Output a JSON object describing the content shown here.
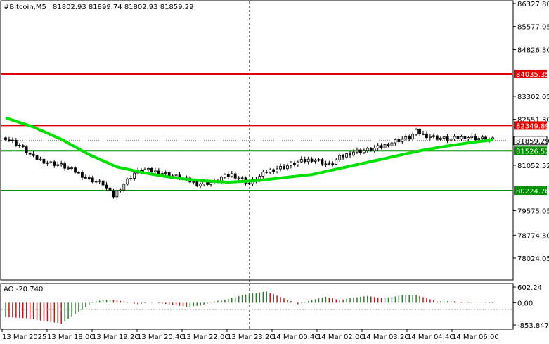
{
  "header": {
    "symbol_timeframe": "#Bitcoin,M5",
    "ohlc": "81802.93 81899.74 81802.93 81859.29"
  },
  "indicator": {
    "label": "AO -20.740"
  },
  "colors": {
    "bull": "#2e7d32",
    "bear": "#b71c1c",
    "ma": "#00e000",
    "resistance": "#e00000",
    "support": "#009000",
    "current": "#000000",
    "ao_up": "#2e7d32",
    "ao_down": "#b71c1c"
  },
  "chart_data": [
    {
      "type": "candlestick",
      "title": "#Bitcoin,M5",
      "ylim": [
        78024.05,
        86327.8
      ],
      "y_ticks": [
        "86327.80",
        "85577.05",
        "84826.30",
        "83302.05",
        "82551.30",
        "81052.52",
        "79575.05",
        "78774.30",
        "78024.05"
      ],
      "x_ticks": [
        "13 Mar 2025",
        "13 Mar 18:00",
        "13 Mar 19:20",
        "13 Mar 20:40",
        "13 Mar 22:00",
        "13 Mar 23:20",
        "14 Mar 00:40",
        "14 Mar 02:00",
        "14 Mar 03:20",
        "14 Mar 04:40",
        "14 Mar 06:00"
      ],
      "price_lines": [
        {
          "name": "resistance-1",
          "value": 84035.35,
          "label": "84035.35",
          "kind": "resistance"
        },
        {
          "name": "resistance-2",
          "value": 82349.89,
          "label": "82349.89",
          "kind": "resistance"
        },
        {
          "name": "current",
          "value": 81859.29,
          "label": "81859.29",
          "kind": "current"
        },
        {
          "name": "support-1",
          "value": 81526.52,
          "label": "81526.52",
          "kind": "support"
        },
        {
          "name": "support-2",
          "value": 80224.78,
          "label": "80224.78",
          "kind": "support"
        }
      ],
      "price_path": [
        [
          0,
          81950
        ],
        [
          4,
          81700
        ],
        [
          8,
          81300
        ],
        [
          12,
          81150
        ],
        [
          16,
          81050
        ],
        [
          20,
          80850
        ],
        [
          24,
          80600
        ],
        [
          28,
          80450
        ],
        [
          30,
          80150
        ],
        [
          31,
          80050
        ],
        [
          34,
          80450
        ],
        [
          37,
          80800
        ],
        [
          40,
          80900
        ],
        [
          45,
          80800
        ],
        [
          50,
          80650
        ],
        [
          55,
          80450
        ],
        [
          60,
          80500
        ],
        [
          62,
          80650
        ],
        [
          65,
          80750
        ],
        [
          68,
          80600
        ],
        [
          70,
          80450
        ],
        [
          72,
          80600
        ],
        [
          75,
          80850
        ],
        [
          78,
          80950
        ],
        [
          80,
          81000
        ],
        [
          84,
          81150
        ],
        [
          88,
          81250
        ],
        [
          90,
          81200
        ],
        [
          93,
          81050
        ],
        [
          96,
          81300
        ],
        [
          100,
          81500
        ],
        [
          104,
          81550
        ],
        [
          108,
          81650
        ],
        [
          112,
          81850
        ],
        [
          116,
          81950
        ],
        [
          118,
          82150
        ],
        [
          120,
          82050
        ],
        [
          124,
          81950
        ],
        [
          128,
          81900
        ],
        [
          132,
          81980
        ],
        [
          136,
          81930
        ],
        [
          140,
          81880
        ]
      ],
      "ma_path": [
        [
          0,
          82600
        ],
        [
          8,
          82300
        ],
        [
          16,
          81900
        ],
        [
          24,
          81400
        ],
        [
          32,
          81000
        ],
        [
          40,
          80800
        ],
        [
          48,
          80650
        ],
        [
          56,
          80550
        ],
        [
          64,
          80500
        ],
        [
          72,
          80550
        ],
        [
          80,
          80650
        ],
        [
          88,
          80750
        ],
        [
          96,
          80950
        ],
        [
          104,
          81150
        ],
        [
          112,
          81350
        ],
        [
          120,
          81550
        ],
        [
          128,
          81700
        ],
        [
          134,
          81800
        ],
        [
          140,
          81880
        ]
      ]
    },
    {
      "type": "bar",
      "title": "AO -20.740",
      "ylim": [
        -853.847,
        602.24
      ],
      "y_ticks": [
        "602.24",
        "0.00",
        "-853.847"
      ],
      "ao_path": [
        [
          0,
          -550
        ],
        [
          6,
          -600
        ],
        [
          12,
          -720
        ],
        [
          16,
          -800
        ],
        [
          18,
          -620
        ],
        [
          22,
          -250
        ],
        [
          26,
          60
        ],
        [
          30,
          120
        ],
        [
          34,
          50
        ],
        [
          38,
          -60
        ],
        [
          42,
          20
        ],
        [
          44,
          -20
        ],
        [
          48,
          -80
        ],
        [
          52,
          -160
        ],
        [
          56,
          -110
        ],
        [
          60,
          50
        ],
        [
          64,
          140
        ],
        [
          68,
          290
        ],
        [
          72,
          380
        ],
        [
          75,
          430
        ],
        [
          78,
          270
        ],
        [
          82,
          60
        ],
        [
          84,
          -60
        ],
        [
          88,
          100
        ],
        [
          92,
          230
        ],
        [
          96,
          100
        ],
        [
          100,
          190
        ],
        [
          104,
          260
        ],
        [
          108,
          170
        ],
        [
          112,
          240
        ],
        [
          114,
          290
        ],
        [
          118,
          300
        ],
        [
          122,
          130
        ],
        [
          124,
          50
        ],
        [
          128,
          60
        ],
        [
          132,
          20
        ],
        [
          140,
          -20
        ]
      ]
    }
  ]
}
